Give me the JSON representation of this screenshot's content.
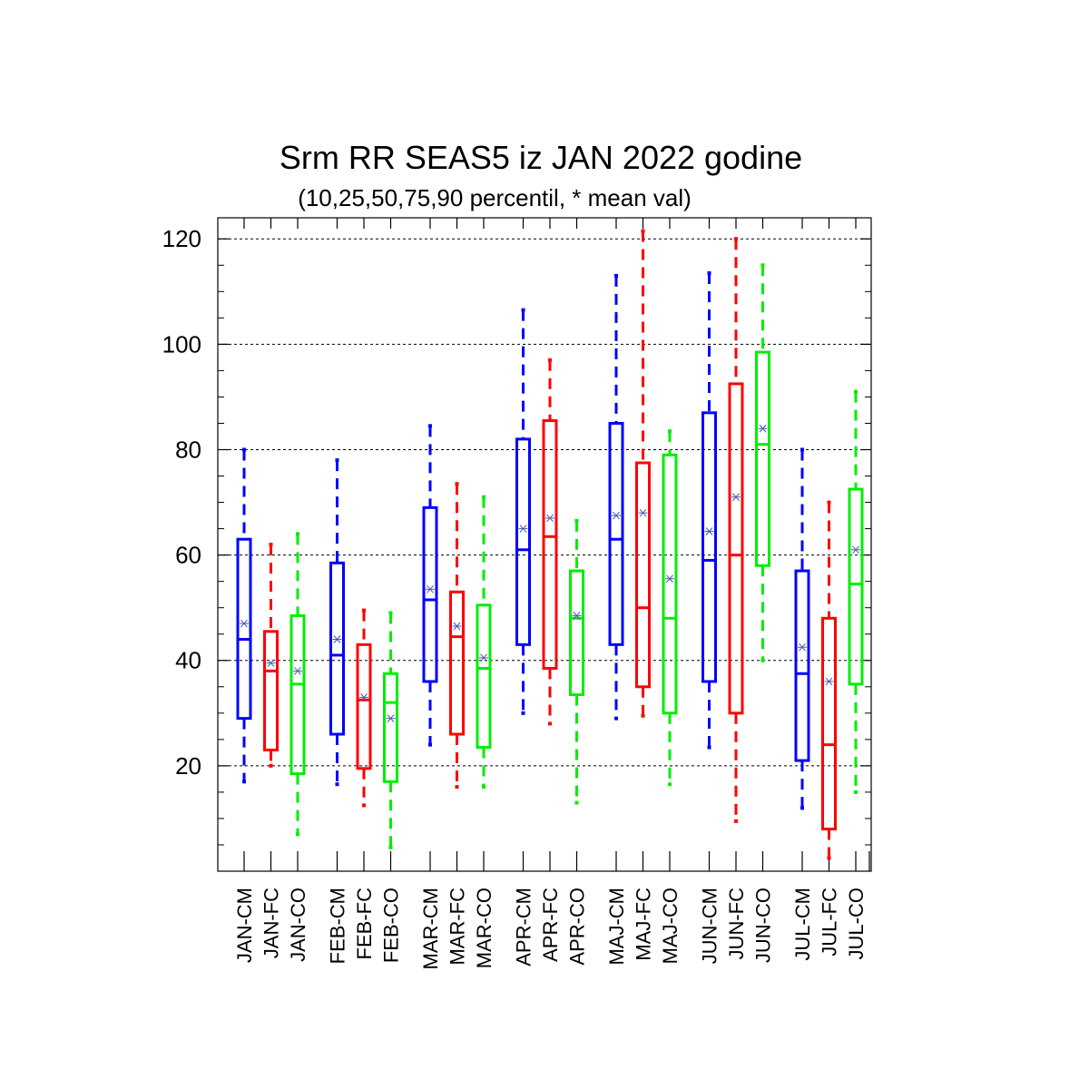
{
  "chart_data": {
    "type": "boxplot",
    "title": "Srm RR SEAS5 iz JAN 2022 godine",
    "subtitle": "(10,25,50,75,90 percentil, * mean val)",
    "ylim": [
      0,
      124
    ],
    "yticks": [
      20,
      40,
      60,
      80,
      100,
      120
    ],
    "grid": "y-dashed",
    "series_colors": {
      "CM": "#0000ff",
      "FC": "#ff0000",
      "CO": "#00ee00"
    },
    "mean_color": "#4a5ab0",
    "boxes": [
      {
        "label": "JAN-CM",
        "series": "CM",
        "p10": 17,
        "p25": 29,
        "p50": 44,
        "p75": 63,
        "p90": 80,
        "mean": 47
      },
      {
        "label": "JAN-FC",
        "series": "FC",
        "p10": 20,
        "p25": 23,
        "p50": 38,
        "p75": 45.5,
        "p90": 62,
        "mean": 39.5
      },
      {
        "label": "JAN-CO",
        "series": "CO",
        "p10": 7,
        "p25": 18.5,
        "p50": 35.5,
        "p75": 48.5,
        "p90": 64,
        "mean": 38
      },
      {
        "label": "FEB-CM",
        "series": "CM",
        "p10": 16.5,
        "p25": 26,
        "p50": 41,
        "p75": 58.5,
        "p90": 78,
        "mean": 44
      },
      {
        "label": "FEB-FC",
        "series": "FC",
        "p10": 12.5,
        "p25": 19.5,
        "p50": 32.5,
        "p75": 43,
        "p90": 49.5,
        "mean": 33
      },
      {
        "label": "FEB-CO",
        "series": "CO",
        "p10": 4.5,
        "p25": 17,
        "p50": 32,
        "p75": 37.5,
        "p90": 49,
        "mean": 29
      },
      {
        "label": "MAR-CM",
        "series": "CM",
        "p10": 24,
        "p25": 36,
        "p50": 51.5,
        "p75": 69,
        "p90": 84.5,
        "mean": 53.5
      },
      {
        "label": "MAR-FC",
        "series": "FC",
        "p10": 16,
        "p25": 26,
        "p50": 44.5,
        "p75": 53,
        "p90": 73.5,
        "mean": 46.5
      },
      {
        "label": "MAR-CO",
        "series": "CO",
        "p10": 16,
        "p25": 23.5,
        "p50": 38.5,
        "p75": 50.5,
        "p90": 71,
        "mean": 40.5
      },
      {
        "label": "APR-CM",
        "series": "CM",
        "p10": 30,
        "p25": 43,
        "p50": 61,
        "p75": 82,
        "p90": 106.5,
        "mean": 65
      },
      {
        "label": "APR-FC",
        "series": "FC",
        "p10": 28,
        "p25": 38.5,
        "p50": 63.5,
        "p75": 85.5,
        "p90": 97,
        "mean": 67
      },
      {
        "label": "APR-CO",
        "series": "CO",
        "p10": 13,
        "p25": 33.5,
        "p50": 48,
        "p75": 57,
        "p90": 66.5,
        "mean": 48.5
      },
      {
        "label": "MAJ-CM",
        "series": "CM",
        "p10": 29,
        "p25": 43,
        "p50": 63,
        "p75": 85,
        "p90": 113,
        "mean": 67.5
      },
      {
        "label": "MAJ-FC",
        "series": "FC",
        "p10": 29.5,
        "p25": 35,
        "p50": 50,
        "p75": 77.5,
        "p90": 121.5,
        "mean": 68
      },
      {
        "label": "MAJ-CO",
        "series": "CO",
        "p10": 16.5,
        "p25": 30,
        "p50": 48,
        "p75": 79,
        "p90": 83.5,
        "mean": 55.5
      },
      {
        "label": "JUN-CM",
        "series": "CM",
        "p10": 23.5,
        "p25": 36,
        "p50": 59,
        "p75": 87,
        "p90": 113.5,
        "mean": 64.5
      },
      {
        "label": "JUN-FC",
        "series": "FC",
        "p10": 9.5,
        "p25": 30,
        "p50": 60,
        "p75": 92.5,
        "p90": 120,
        "mean": 71
      },
      {
        "label": "JUN-CO",
        "series": "CO",
        "p10": 40,
        "p25": 58,
        "p50": 81,
        "p75": 98.5,
        "p90": 115,
        "mean": 84
      },
      {
        "label": "JUL-CM",
        "series": "CM",
        "p10": 12,
        "p25": 21,
        "p50": 37.5,
        "p75": 57,
        "p90": 80,
        "mean": 42.5
      },
      {
        "label": "JUL-FC",
        "series": "FC",
        "p10": 2.5,
        "p25": 8,
        "p50": 24,
        "p75": 48,
        "p90": 70,
        "mean": 36
      },
      {
        "label": "JUL-CO",
        "series": "CO",
        "p10": 15,
        "p25": 35.5,
        "p50": 54.5,
        "p75": 72.5,
        "p90": 91,
        "mean": 61
      }
    ]
  }
}
